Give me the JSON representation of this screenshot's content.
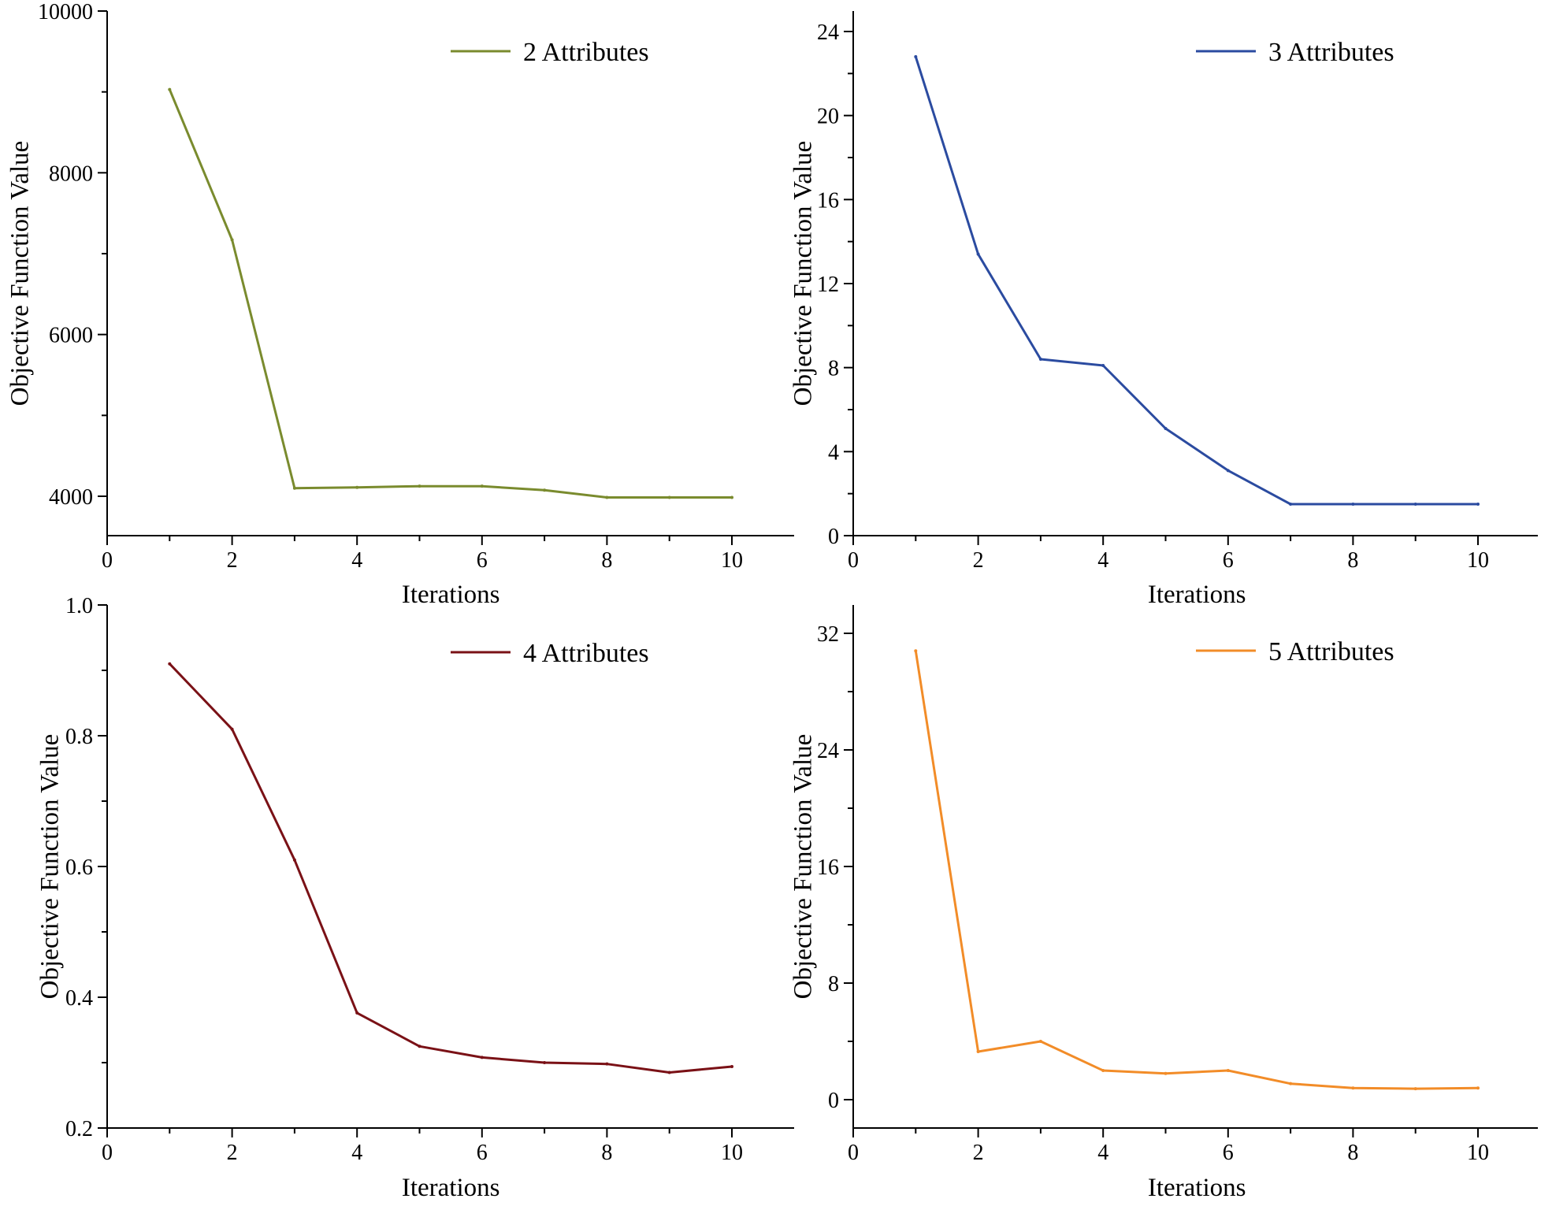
{
  "chart_data": [
    {
      "type": "line",
      "title": "",
      "xlabel": "Iterations",
      "ylabel": "Objective Function Value",
      "xlim": [
        0,
        11
      ],
      "ylim": [
        3500,
        10000
      ],
      "xticks": [
        0,
        2,
        4,
        6,
        8,
        10
      ],
      "xtick_labels": [
        "0",
        "2",
        "4",
        "6",
        "8",
        "10"
      ],
      "yticks": [
        4000,
        6000,
        8000,
        10000
      ],
      "ytick_labels": [
        "4000",
        "6000",
        "8000",
        "10000"
      ],
      "grid": false,
      "legend_position": "top-right",
      "series": [
        {
          "name": "2 Attributes",
          "color": "#7a8b2e",
          "x": [
            1,
            2,
            3,
            4,
            5,
            6,
            7,
            8,
            9,
            10
          ],
          "values": [
            9030,
            7170,
            4100,
            4110,
            4125,
            4125,
            4075,
            3985,
            3985,
            3985
          ]
        }
      ]
    },
    {
      "type": "line",
      "title": "",
      "xlabel": "Iterations",
      "ylabel": "Objective Function Value",
      "xlim": [
        0,
        11
      ],
      "ylim": [
        0,
        25
      ],
      "xticks": [
        0,
        2,
        4,
        6,
        8,
        10
      ],
      "xtick_labels": [
        "0",
        "2",
        "4",
        "6",
        "8",
        "10"
      ],
      "yticks": [
        0,
        4,
        8,
        12,
        16,
        20,
        24
      ],
      "ytick_labels": [
        "0",
        "4",
        "8",
        "12",
        "16",
        "20",
        "24"
      ],
      "grid": false,
      "legend_position": "top-right",
      "series": [
        {
          "name": "3 Attributes",
          "color": "#2b4ba0",
          "x": [
            1,
            2,
            3,
            4,
            5,
            6,
            7,
            8,
            9,
            10
          ],
          "values": [
            22.8,
            13.4,
            8.4,
            8.1,
            5.1,
            3.1,
            1.5,
            1.5,
            1.5,
            1.5
          ]
        }
      ]
    },
    {
      "type": "line",
      "title": "",
      "xlabel": "Iterations",
      "ylabel": "Objective Function Value",
      "xlim": [
        0,
        11
      ],
      "ylim": [
        0.2,
        1.0
      ],
      "xticks": [
        0,
        2,
        4,
        6,
        8,
        10
      ],
      "xtick_labels": [
        "0",
        "2",
        "4",
        "6",
        "8",
        "10"
      ],
      "yticks": [
        0.2,
        0.4,
        0.6,
        0.8,
        1.0
      ],
      "ytick_labels": [
        "0.2",
        "0.4",
        "0.6",
        "0.8",
        "1.0"
      ],
      "grid": false,
      "legend_position": "top-right",
      "series": [
        {
          "name": "4 Attributes",
          "color": "#7a1116",
          "x": [
            1,
            2,
            3,
            4,
            5,
            6,
            7,
            8,
            9,
            10
          ],
          "values": [
            0.91,
            0.81,
            0.61,
            0.376,
            0.325,
            0.308,
            0.3,
            0.298,
            0.285,
            0.294
          ]
        }
      ]
    },
    {
      "type": "line",
      "title": "",
      "xlabel": "Iterations",
      "ylabel": "Objective Function Value",
      "xlim": [
        0,
        11
      ],
      "ylim": [
        -2,
        34
      ],
      "xticks": [
        0,
        2,
        4,
        6,
        8,
        10
      ],
      "xtick_labels": [
        "0",
        "2",
        "4",
        "6",
        "8",
        "10"
      ],
      "yticks": [
        0,
        8,
        16,
        24,
        32
      ],
      "ytick_labels": [
        "0",
        "8",
        "16",
        "24",
        "32"
      ],
      "grid": false,
      "legend_position": "top-right",
      "series": [
        {
          "name": "5 Attributes",
          "color": "#f28c28",
          "x": [
            1,
            2,
            3,
            4,
            5,
            6,
            7,
            8,
            9,
            10
          ],
          "values": [
            30.8,
            3.3,
            4.0,
            2.0,
            1.8,
            2.0,
            1.1,
            0.8,
            0.75,
            0.8
          ]
        }
      ]
    }
  ]
}
